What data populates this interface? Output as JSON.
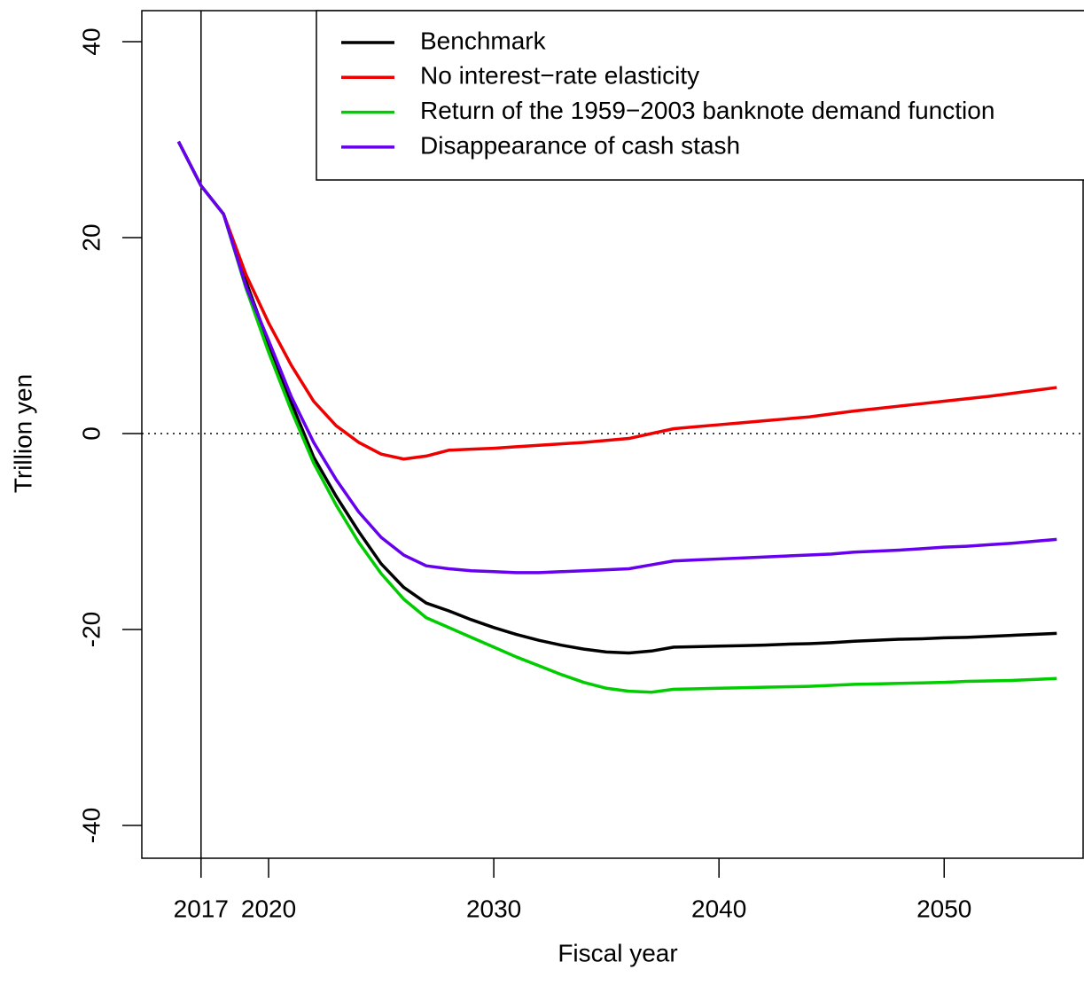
{
  "chart_data": {
    "type": "line",
    "x_label": "Fiscal year",
    "y_label": "Trillion yen",
    "x": [
      2016,
      2017,
      2018,
      2019,
      2020,
      2021,
      2022,
      2023,
      2024,
      2025,
      2026,
      2027,
      2028,
      2029,
      2030,
      2031,
      2032,
      2033,
      2034,
      2035,
      2036,
      2037,
      2038,
      2039,
      2040,
      2041,
      2042,
      2043,
      2044,
      2045,
      2046,
      2047,
      2048,
      2049,
      2050,
      2051,
      2052,
      2053,
      2054,
      2055
    ],
    "series": [
      {
        "name": "Benchmark",
        "color": "#000000",
        "values": [
          29.8,
          25.3,
          22.4,
          15.5,
          9.2,
          3.2,
          -2.4,
          -6.4,
          -10.0,
          -13.3,
          -15.7,
          -17.3,
          -18.1,
          -19.0,
          -19.8,
          -20.5,
          -21.1,
          -21.6,
          -22.0,
          -22.3,
          -22.4,
          -22.2,
          -21.8,
          -21.75,
          -21.7,
          -21.65,
          -21.6,
          -21.5,
          -21.45,
          -21.35,
          -21.2,
          -21.1,
          -21.0,
          -20.95,
          -20.85,
          -20.8,
          -20.7,
          -20.6,
          -20.5,
          -20.4
        ]
      },
      {
        "name": "No interest−rate elasticity",
        "color": "#ee0000",
        "values": [
          29.8,
          25.3,
          22.4,
          16.2,
          11.3,
          7.0,
          3.3,
          0.8,
          -0.9,
          -2.1,
          -2.6,
          -2.3,
          -1.7,
          -1.6,
          -1.5,
          -1.35,
          -1.2,
          -1.05,
          -0.9,
          -0.7,
          -0.5,
          0.0,
          0.5,
          0.7,
          0.9,
          1.1,
          1.3,
          1.5,
          1.7,
          2.0,
          2.3,
          2.55,
          2.8,
          3.05,
          3.3,
          3.55,
          3.8,
          4.1,
          4.4,
          4.7
        ]
      },
      {
        "name": "Return of the 1959−2003 banknote demand function",
        "color": "#00cc00",
        "values": [
          29.8,
          25.3,
          22.4,
          14.8,
          8.3,
          2.4,
          -3.0,
          -7.3,
          -11.1,
          -14.3,
          -16.9,
          -18.8,
          -19.8,
          -20.8,
          -21.8,
          -22.8,
          -23.7,
          -24.6,
          -25.4,
          -26.0,
          -26.3,
          -26.4,
          -26.1,
          -26.05,
          -26.0,
          -25.95,
          -25.9,
          -25.85,
          -25.8,
          -25.7,
          -25.6,
          -25.55,
          -25.5,
          -25.45,
          -25.4,
          -25.3,
          -25.25,
          -25.2,
          -25.1,
          -25.0
        ]
      },
      {
        "name": "Disappearance of cash stash",
        "color": "#6600ee",
        "values": [
          29.8,
          25.3,
          22.4,
          15.0,
          9.5,
          3.8,
          -0.9,
          -4.7,
          -8.0,
          -10.6,
          -12.4,
          -13.5,
          -13.8,
          -14.0,
          -14.1,
          -14.2,
          -14.2,
          -14.1,
          -14.0,
          -13.9,
          -13.8,
          -13.4,
          -13.0,
          -12.9,
          -12.8,
          -12.7,
          -12.6,
          -12.5,
          -12.4,
          -12.3,
          -12.1,
          -12.0,
          -11.9,
          -11.75,
          -11.6,
          -11.5,
          -11.35,
          -11.2,
          -11.0,
          -10.8
        ]
      }
    ],
    "xlim": [
      2014.37,
      2056.17
    ],
    "ylim": [
      -43.35,
      43.17
    ],
    "xticks": [
      2017,
      2020,
      2030,
      2040,
      2050
    ],
    "yticks": [
      -40,
      -20,
      0,
      20,
      40
    ],
    "vline": 2017,
    "hline": 0,
    "legend": "topright",
    "grid": false
  }
}
